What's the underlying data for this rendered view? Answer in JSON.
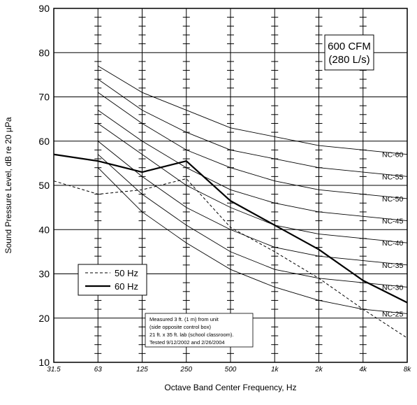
{
  "chart_data": {
    "type": "line",
    "title": "",
    "xlabel": "Octave Band Center Frequency, Hz",
    "ylabel": "Sound Pressure Level, dB re 20 µPa",
    "x_categories": [
      "31.5",
      "63",
      "125",
      "250",
      "500",
      "1k",
      "2k",
      "4k",
      "8k"
    ],
    "yticks": [
      10,
      20,
      30,
      40,
      50,
      60,
      70,
      80,
      90
    ],
    "ylim": [
      10,
      90
    ],
    "grid": true,
    "annotation_box": {
      "line1": "600 CFM",
      "line2": "(280 L/s)"
    },
    "note_lines": [
      "Measured 3 ft. (1 m) from unit",
      "(side opposite control box)",
      "21 ft. x 35 ft. lab (school classroom).",
      "Tested 9/12/2002 and 2/26/2004"
    ],
    "legend": {
      "placement": "lower-left",
      "entries": [
        "50 Hz",
        "60 Hz"
      ]
    },
    "nc_curves": [
      {
        "name": "NC-60",
        "x": [
          "63",
          "125",
          "250",
          "500",
          "1k",
          "2k",
          "4k",
          "8k"
        ],
        "values": [
          77,
          71,
          67,
          63,
          61,
          59,
          58,
          57
        ]
      },
      {
        "name": "NC-55",
        "x": [
          "63",
          "125",
          "250",
          "500",
          "1k",
          "2k",
          "4k",
          "8k"
        ],
        "values": [
          74,
          67,
          62,
          58,
          56,
          54,
          53,
          52
        ]
      },
      {
        "name": "NC-50",
        "x": [
          "63",
          "125",
          "250",
          "500",
          "1k",
          "2k",
          "4k",
          "8k"
        ],
        "values": [
          71,
          64,
          58,
          54,
          51,
          49,
          48,
          47
        ]
      },
      {
        "name": "NC-45",
        "x": [
          "63",
          "125",
          "250",
          "500",
          "1k",
          "2k",
          "4k",
          "8k"
        ],
        "values": [
          67,
          60,
          54,
          49,
          46,
          44,
          43,
          42
        ]
      },
      {
        "name": "NC-40",
        "x": [
          "63",
          "125",
          "250",
          "500",
          "1k",
          "2k",
          "4k",
          "8k"
        ],
        "values": [
          64,
          57,
          50,
          45,
          41,
          39,
          38,
          37
        ]
      },
      {
        "name": "NC-35",
        "x": [
          "63",
          "125",
          "250",
          "500",
          "1k",
          "2k",
          "4k",
          "8k"
        ],
        "values": [
          60,
          52,
          45,
          40,
          36,
          34,
          33,
          32
        ]
      },
      {
        "name": "NC-30",
        "x": [
          "63",
          "125",
          "250",
          "500",
          "1k",
          "2k",
          "4k",
          "8k"
        ],
        "values": [
          57,
          48,
          41,
          35,
          31,
          29,
          28,
          27
        ]
      },
      {
        "name": "NC-25",
        "x": [
          "63",
          "125",
          "250",
          "500",
          "1k",
          "2k",
          "4k",
          "8k"
        ],
        "values": [
          54,
          44,
          37,
          31,
          27,
          24,
          22,
          21
        ]
      }
    ],
    "series": [
      {
        "name": "50 Hz",
        "style": "dashed",
        "color": "#000000",
        "x": [
          "31.5",
          "63",
          "125",
          "250",
          "500",
          "1k",
          "2k",
          "4k",
          "8k"
        ],
        "values": [
          51,
          48,
          49,
          51.5,
          40.5,
          35,
          29,
          22,
          15.5
        ]
      },
      {
        "name": "60 Hz",
        "style": "solid-thick",
        "color": "#000000",
        "x": [
          "31.5",
          "63",
          "125",
          "250",
          "500",
          "1k",
          "2k",
          "4k",
          "8k"
        ],
        "values": [
          57,
          55.5,
          53,
          55.5,
          46.5,
          41,
          35.5,
          28.5,
          23.5
        ]
      }
    ]
  }
}
